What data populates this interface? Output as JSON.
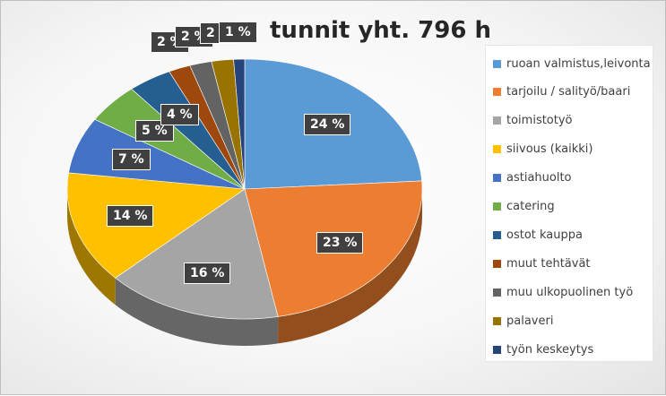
{
  "chart_data": {
    "type": "pie",
    "title": "tunnit yht. 796 h",
    "legend_position": "right",
    "slices": [
      {
        "label": "ruoan valmistus,leivonta",
        "value": 24,
        "data_label": "24 %",
        "color": "#5b9bd5"
      },
      {
        "label": "tarjoilu / salityö/baari",
        "value": 23,
        "data_label": "23 %",
        "color": "#ed7d31"
      },
      {
        "label": "toimistotyö",
        "value": 16,
        "data_label": "16 %",
        "color": "#a5a5a5"
      },
      {
        "label": "siivous (kaikki)",
        "value": 14,
        "data_label": "14 %",
        "color": "#ffc000"
      },
      {
        "label": "astiahuolto",
        "value": 7,
        "data_label": "7 %",
        "color": "#4472c4"
      },
      {
        "label": "catering",
        "value": 5,
        "data_label": "5 %",
        "color": "#70ad47"
      },
      {
        "label": "ostot kauppa",
        "value": 4,
        "data_label": "4 %",
        "color": "#255e91"
      },
      {
        "label": "muut tehtävät",
        "value": 2,
        "data_label": "2 %",
        "color": "#9e480e"
      },
      {
        "label": "muu ulkopuolinen työ",
        "value": 2,
        "data_label": "2 %",
        "color": "#636363"
      },
      {
        "label": "palaveri",
        "value": 2,
        "data_label": "2 %",
        "color": "#997300"
      },
      {
        "label": "työn keskeytys",
        "value": 1,
        "data_label": "1 %",
        "color": "#264478"
      }
    ]
  }
}
